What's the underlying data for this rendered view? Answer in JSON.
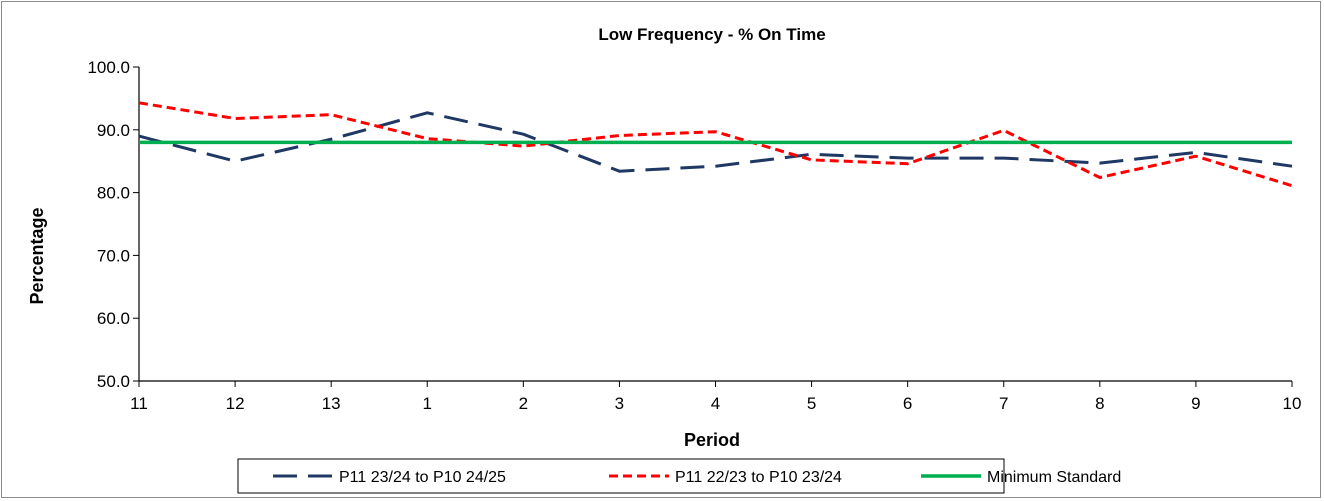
{
  "chart_data": {
    "type": "line",
    "title": "Low Frequency - % On Time",
    "xlabel": "Period",
    "ylabel": "Percentage",
    "categories": [
      "11",
      "12",
      "13",
      "1",
      "2",
      "3",
      "4",
      "5",
      "6",
      "7",
      "8",
      "9",
      "10"
    ],
    "ylim": [
      50,
      100
    ],
    "yticks": [
      "50.0",
      "60.0",
      "70.0",
      "80.0",
      "90.0",
      "100.0"
    ],
    "grid": false,
    "legend_position": "bottom",
    "series": [
      {
        "name": "P11 23/24 to P10 24/25",
        "values": [
          89.0,
          85.0,
          88.5,
          92.7,
          89.3,
          83.4,
          84.2,
          86.1,
          85.5,
          85.5,
          84.7,
          86.4,
          84.2
        ],
        "color": "#1f3864",
        "style": "long-dash"
      },
      {
        "name": "P11 22/23 to P10 23/24",
        "values": [
          94.3,
          91.8,
          92.4,
          88.6,
          87.4,
          89.1,
          89.7,
          85.2,
          84.6,
          89.9,
          82.4,
          85.8,
          81.1
        ],
        "color": "#ff0000",
        "style": "short-dash"
      },
      {
        "name": "Minimum Standard",
        "values": [
          88,
          88,
          88,
          88,
          88,
          88,
          88,
          88,
          88,
          88,
          88,
          88,
          88
        ],
        "color": "#00b050",
        "style": "solid"
      }
    ]
  }
}
